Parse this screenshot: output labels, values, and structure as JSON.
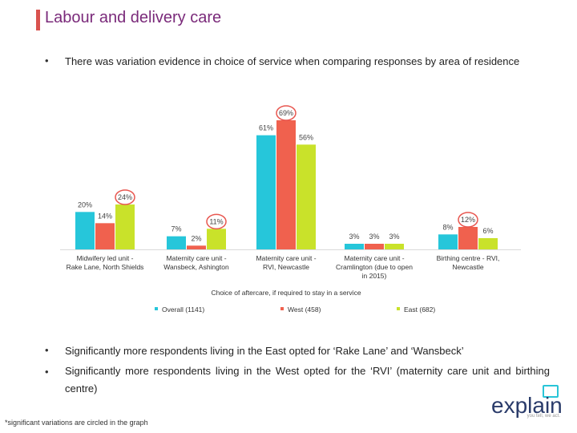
{
  "page": {
    "title": "Labour and delivery care",
    "bullet_char": "•",
    "bullets": [
      "There was variation evidence in choice of service when comparing responses by area of residence",
      "Significantly more respondents living in the East opted for ‘Rake Lane’ and ‘Wansbeck’",
      "Significantly more respondents living in the West opted for the ‘RVI’ (maternity care unit and birthing centre)"
    ],
    "footnote": "*significant variations are circled in the graph",
    "logo": {
      "text": "explain",
      "tagline": "you tell, we act."
    }
  },
  "chart_data": {
    "type": "bar",
    "title": "",
    "xlabel": "Choice of aftercare, if required to stay in a service",
    "ylabel": "",
    "ylim": [
      0,
      75
    ],
    "grid": false,
    "legend_position": "bottom",
    "categories": [
      "Midwifery led unit - Rake Lane, North Shields",
      "Maternity care unit - Wansbeck, Ashington",
      "Maternity care unit - RVI, Newcastle",
      "Maternity care unit - Cramlington (due to open in 2015)",
      "Birthing centre - RVI, Newcastle"
    ],
    "series": [
      {
        "name": "Overall (1141)",
        "color": "#26c6da",
        "values": [
          20,
          7,
          61,
          3,
          8
        ]
      },
      {
        "name": "West (458)",
        "color": "#f0614e",
        "values": [
          14,
          2,
          69,
          3,
          12
        ]
      },
      {
        "name": "East (682)",
        "color": "#c9e22a",
        "values": [
          24,
          11,
          56,
          3,
          6
        ]
      }
    ],
    "data_labels": [
      [
        "20%",
        "14%",
        "24%"
      ],
      [
        "7%",
        "2%",
        "11%"
      ],
      [
        "61%",
        "69%",
        "56%"
      ],
      [
        "3%",
        "3%",
        "3%"
      ],
      [
        "8%",
        "12%",
        "6%"
      ]
    ],
    "circled": [
      {
        "category": 0,
        "series": 2
      },
      {
        "category": 1,
        "series": 2
      },
      {
        "category": 2,
        "series": 1
      },
      {
        "category": 4,
        "series": 1
      }
    ]
  }
}
